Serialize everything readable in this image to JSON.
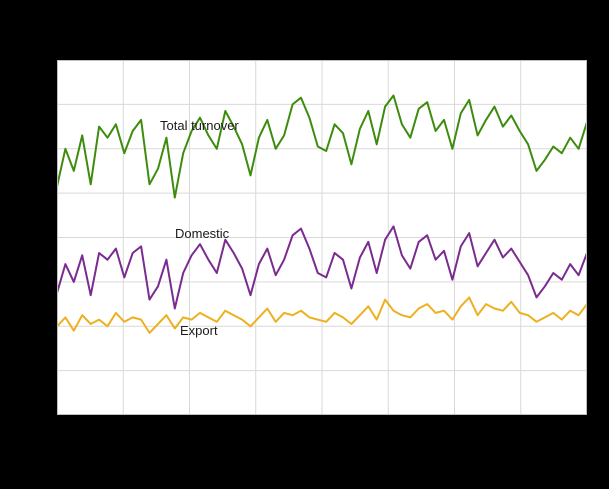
{
  "figure": {
    "background_color": "#000000",
    "plot_background_color": "#ffffff",
    "grid_color": "#d9d9d9",
    "axis_color": "#bfbfbf"
  },
  "labels": {
    "total": "Total turnover",
    "domestic": "Domestic",
    "export": "Export"
  },
  "chart_data": {
    "type": "line",
    "title": "",
    "xlabel": "",
    "ylabel": "",
    "ylim": [
      0,
      160
    ],
    "grid": true,
    "legend_position": "inline-labels",
    "x_gridline_count": 9,
    "y_gridline_count": 9,
    "x_count": 64,
    "series": [
      {
        "name": "Total turnover",
        "color": "#3e8c0e",
        "values": [
          103,
          120,
          110,
          126,
          104,
          130,
          125,
          131,
          118,
          128,
          133,
          104,
          111,
          125,
          98,
          118,
          128,
          134,
          126,
          120,
          137,
          130,
          122,
          108,
          125,
          133,
          120,
          126,
          140,
          143,
          134,
          121,
          119,
          131,
          127,
          113,
          129,
          137,
          122,
          139,
          144,
          131,
          125,
          138,
          141,
          128,
          133,
          120,
          136,
          142,
          126,
          133,
          139,
          130,
          135,
          128,
          122,
          110,
          115,
          121,
          118,
          125,
          120,
          132
        ]
      },
      {
        "name": "Domestic",
        "color": "#7a2b8f",
        "values": [
          55,
          68,
          60,
          72,
          54,
          73,
          70,
          75,
          62,
          73,
          76,
          52,
          58,
          70,
          48,
          64,
          72,
          77,
          70,
          64,
          79,
          73,
          66,
          54,
          68,
          75,
          63,
          70,
          81,
          84,
          75,
          64,
          62,
          73,
          70,
          57,
          71,
          78,
          64,
          79,
          85,
          72,
          66,
          78,
          81,
          70,
          74,
          61,
          76,
          82,
          67,
          73,
          79,
          71,
          75,
          69,
          63,
          53,
          58,
          64,
          61,
          68,
          63,
          73
        ]
      },
      {
        "name": "Export",
        "color": "#edb120",
        "values": [
          40,
          44,
          38,
          45,
          41,
          43,
          40,
          46,
          42,
          44,
          43,
          37,
          41,
          45,
          39,
          44,
          43,
          46,
          44,
          42,
          47,
          45,
          43,
          40,
          44,
          48,
          42,
          46,
          45,
          47,
          44,
          43,
          42,
          46,
          44,
          41,
          45,
          49,
          43,
          52,
          47,
          45,
          44,
          48,
          50,
          46,
          47,
          43,
          49,
          53,
          45,
          50,
          48,
          47,
          51,
          46,
          45,
          42,
          44,
          46,
          43,
          47,
          45,
          50
        ]
      }
    ]
  }
}
